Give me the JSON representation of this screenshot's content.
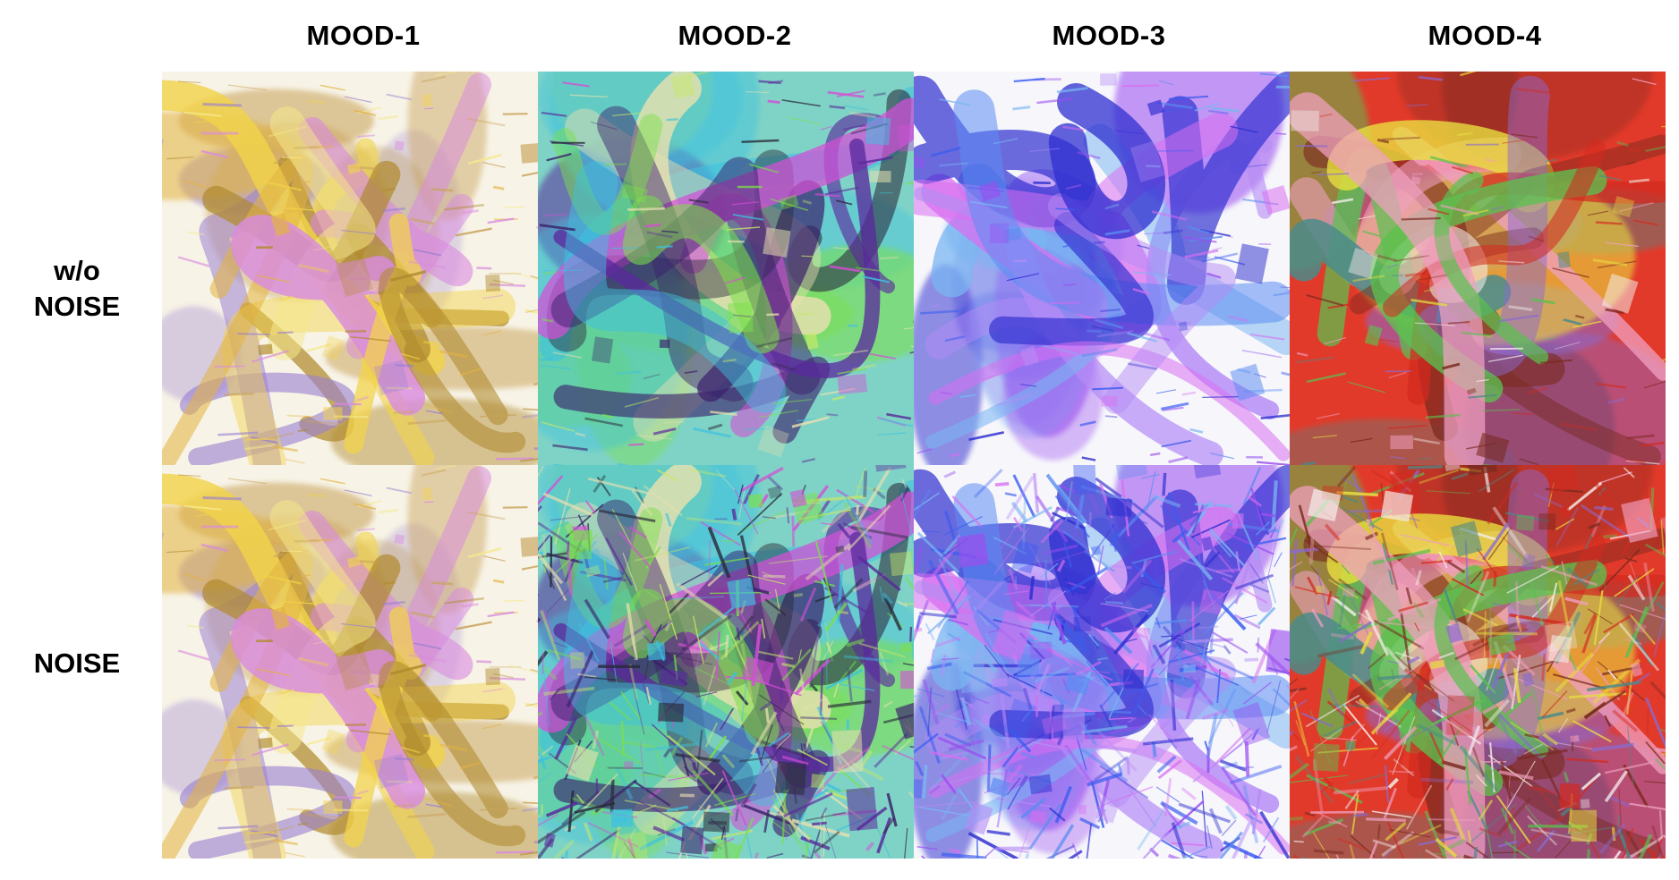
{
  "columns": [
    "MOOD-1",
    "MOOD-2",
    "MOOD-3",
    "MOOD-4"
  ],
  "rows": [
    {
      "label_lines": [
        "w/o",
        "NOISE"
      ]
    },
    {
      "label_lines": [
        "NOISE"
      ]
    }
  ],
  "palettes": {
    "mood1": {
      "bg": "#f7f3e6",
      "colors": [
        "#f2d34a",
        "#e3b441",
        "#c9a35a",
        "#b08a2e",
        "#d98be0",
        "#9a7fd1",
        "#f6e98c"
      ]
    },
    "mood2": {
      "bg": "#7fd3c6",
      "colors": [
        "#3ec1e0",
        "#7be04a",
        "#d44fd6",
        "#3a1f6b",
        "#e8e0b0",
        "#5a2a9c",
        "#c8e86a",
        "#2a2a3a"
      ]
    },
    "mood3": {
      "bg": "#f6f6fb",
      "colors": [
        "#3a5cf0",
        "#5b8cf2",
        "#9a4ef0",
        "#b58cf6",
        "#2f2fd0",
        "#7ab6f2",
        "#d86ff0"
      ]
    },
    "mood4": {
      "bg": "#e23a2a",
      "colors": [
        "#f6f0ee",
        "#d32a20",
        "#8a6ad0",
        "#5cc050",
        "#e8e040",
        "#4a8a8a",
        "#f0a0c0",
        "#7a2a20"
      ]
    }
  }
}
